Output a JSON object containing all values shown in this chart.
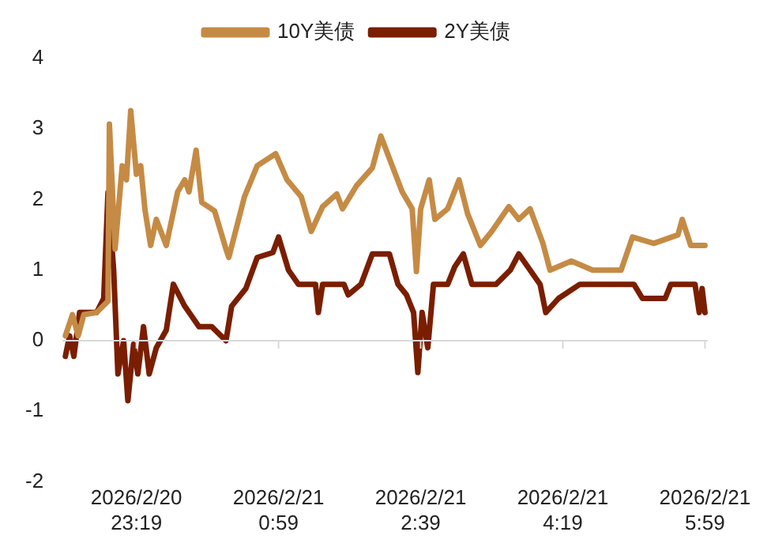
{
  "chart_data": {
    "type": "line",
    "legend": "top",
    "grid": false,
    "marker": "none",
    "line_style": "solid",
    "ref_lines": [
      {
        "axis": "y",
        "value": 0,
        "color": "#d9d9d9"
      }
    ],
    "ylim": [
      -2,
      4
    ],
    "yticks": [
      -2,
      -1,
      0,
      1,
      2,
      3,
      4
    ],
    "xlim": [
      "2026-02-20T22:27",
      "2026-02-21T06:01"
    ],
    "xticks": [
      {
        "value": "2026-02-20T23:19",
        "label": "2026/2/20\n23:19"
      },
      {
        "value": "2026-02-21T00:59",
        "label": "2026/2/21\n0:59"
      },
      {
        "value": "2026-02-21T02:39",
        "label": "2026/2/21\n2:39"
      },
      {
        "value": "2026-02-21T04:19",
        "label": "2026/2/21\n4:19"
      },
      {
        "value": "2026-02-21T05:59",
        "label": "2026/2/21\n5:59"
      }
    ],
    "series": [
      {
        "name": "10Y美债",
        "color": "#c58b45",
        "x": [
          "2026-02-20T22:29",
          "2026-02-20T22:34",
          "2026-02-20T22:38",
          "2026-02-20T22:42",
          "2026-02-20T22:51",
          "2026-02-20T22:59",
          "2026-02-20T23:00",
          "2026-02-20T23:04",
          "2026-02-20T23:09",
          "2026-02-20T23:12",
          "2026-02-20T23:15",
          "2026-02-20T23:19",
          "2026-02-20T23:22",
          "2026-02-20T23:25",
          "2026-02-20T23:29",
          "2026-02-20T23:33",
          "2026-02-20T23:40",
          "2026-02-20T23:48",
          "2026-02-20T23:53",
          "2026-02-20T23:56",
          "2026-02-21T00:01",
          "2026-02-21T00:05",
          "2026-02-21T00:14",
          "2026-02-21T00:22",
          "2026-02-21T00:24",
          "2026-02-21T00:35",
          "2026-02-21T00:44",
          "2026-02-21T00:57",
          "2026-02-21T01:05",
          "2026-02-21T01:15",
          "2026-02-21T01:22",
          "2026-02-21T01:30",
          "2026-02-21T01:40",
          "2026-02-21T01:44",
          "2026-02-21T01:54",
          "2026-02-21T02:05",
          "2026-02-21T02:11",
          "2026-02-21T02:18",
          "2026-02-21T02:26",
          "2026-02-21T02:33",
          "2026-02-21T02:36",
          "2026-02-21T02:39",
          "2026-02-21T02:45",
          "2026-02-21T02:49",
          "2026-02-21T02:58",
          "2026-02-21T03:06",
          "2026-02-21T03:12",
          "2026-02-21T03:21",
          "2026-02-21T03:29",
          "2026-02-21T03:41",
          "2026-02-21T03:48",
          "2026-02-21T03:56",
          "2026-02-21T04:05",
          "2026-02-21T04:10",
          "2026-02-21T04:25",
          "2026-02-21T04:40",
          "2026-02-21T05:00",
          "2026-02-21T05:08",
          "2026-02-21T05:23",
          "2026-02-21T05:40",
          "2026-02-21T05:43",
          "2026-02-21T05:49",
          "2026-02-21T05:59"
        ],
        "values": [
          0.07,
          0.37,
          0.07,
          0.37,
          0.4,
          0.56,
          3.07,
          1.3,
          2.48,
          2.28,
          3.26,
          2.36,
          2.48,
          1.86,
          1.35,
          1.72,
          1.35,
          2.11,
          2.28,
          2.11,
          2.7,
          1.96,
          1.84,
          1.3,
          1.18,
          2.04,
          2.48,
          2.65,
          2.28,
          2.04,
          1.55,
          1.9,
          2.08,
          1.87,
          2.2,
          2.45,
          2.9,
          2.53,
          2.11,
          1.87,
          0.98,
          1.87,
          2.28,
          1.72,
          1.87,
          2.28,
          1.8,
          1.35,
          1.55,
          1.9,
          1.72,
          1.87,
          1.38,
          1.0,
          1.13,
          1.0,
          1.0,
          1.47,
          1.38,
          1.5,
          1.72,
          1.35,
          1.35
        ]
      },
      {
        "name": "2Y美债",
        "color": "#7a1e00",
        "x": [
          "2026-02-20T22:29",
          "2026-02-20T22:32",
          "2026-02-20T22:35",
          "2026-02-20T22:39",
          "2026-02-20T22:51",
          "2026-02-20T22:56",
          "2026-02-20T22:59",
          "2026-02-20T23:03",
          "2026-02-20T23:06",
          "2026-02-20T23:10",
          "2026-02-20T23:13",
          "2026-02-20T23:17",
          "2026-02-20T23:20",
          "2026-02-20T23:24",
          "2026-02-20T23:28",
          "2026-02-20T23:33",
          "2026-02-20T23:40",
          "2026-02-20T23:45",
          "2026-02-20T23:53",
          "2026-02-21T00:03",
          "2026-02-21T00:12",
          "2026-02-21T00:22",
          "2026-02-21T00:26",
          "2026-02-21T00:36",
          "2026-02-21T00:44",
          "2026-02-21T00:55",
          "2026-02-21T00:59",
          "2026-02-21T01:06",
          "2026-02-21T01:13",
          "2026-02-21T01:25",
          "2026-02-21T01:27",
          "2026-02-21T01:30",
          "2026-02-21T01:45",
          "2026-02-21T01:48",
          "2026-02-21T01:57",
          "2026-02-21T02:05",
          "2026-02-21T02:17",
          "2026-02-21T02:23",
          "2026-02-21T02:29",
          "2026-02-21T02:34",
          "2026-02-21T02:37",
          "2026-02-21T02:40",
          "2026-02-21T02:44",
          "2026-02-21T02:48",
          "2026-02-21T02:58",
          "2026-02-21T03:03",
          "2026-02-21T03:09",
          "2026-02-21T03:15",
          "2026-02-21T03:32",
          "2026-02-21T03:42",
          "2026-02-21T03:48",
          "2026-02-21T03:56",
          "2026-02-21T04:03",
          "2026-02-21T04:07",
          "2026-02-21T04:16",
          "2026-02-21T04:31",
          "2026-02-21T05:09",
          "2026-02-21T05:15",
          "2026-02-21T05:31",
          "2026-02-21T05:35",
          "2026-02-21T05:52",
          "2026-02-21T05:55",
          "2026-02-21T05:57",
          "2026-02-21T05:59"
        ],
        "values": [
          -0.22,
          0.07,
          -0.22,
          0.4,
          0.4,
          0.6,
          2.1,
          1.0,
          -0.47,
          0,
          -0.85,
          -0.05,
          -0.47,
          0.2,
          -0.47,
          -0.1,
          0.15,
          0.8,
          0.49,
          0.2,
          0.2,
          0,
          0.49,
          0.74,
          1.18,
          1.25,
          1.47,
          1.0,
          0.8,
          0.8,
          0.4,
          0.8,
          0.8,
          0.65,
          0.8,
          1.23,
          1.23,
          0.8,
          0.65,
          0.4,
          -0.45,
          0.4,
          -0.1,
          0.8,
          0.8,
          1.05,
          1.23,
          0.8,
          0.8,
          1.0,
          1.23,
          1.0,
          0.8,
          0.4,
          0.6,
          0.8,
          0.8,
          0.6,
          0.6,
          0.8,
          0.8,
          0.4,
          0.74,
          0.4
        ]
      }
    ]
  }
}
